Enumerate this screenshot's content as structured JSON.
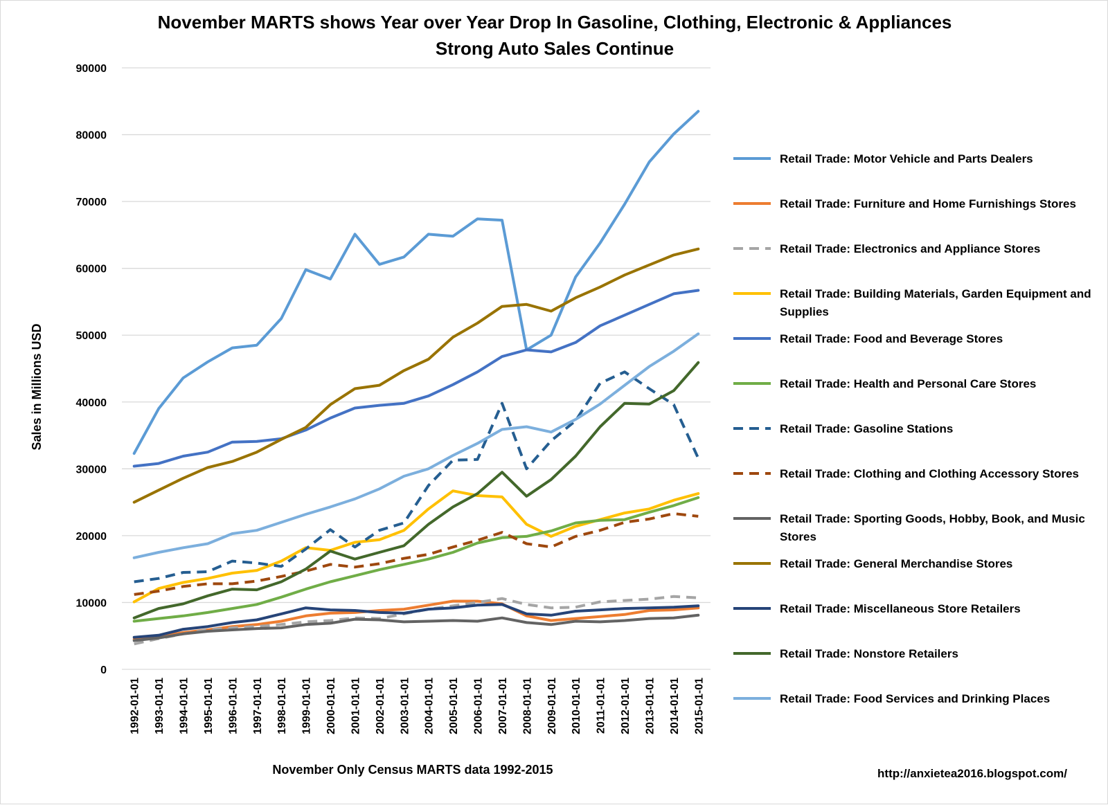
{
  "chart_data": {
    "type": "line",
    "title": [
      "November MARTS shows Year over Year Drop In Gasoline, Clothing, Electronic & Appliances",
      "Strong Auto Sales Continue"
    ],
    "xlabel": "November Only Census MARTS data 1992-2015",
    "ylabel": "Sales in Millions USD",
    "ylim": [
      0,
      90000
    ],
    "yticks": [
      0,
      10000,
      20000,
      30000,
      40000,
      50000,
      60000,
      70000,
      80000,
      90000
    ],
    "grid": "horizontal",
    "legend_position": "right",
    "source_text": "http://anxietea2016.blogspot.com/",
    "categories": [
      "1992-01-01",
      "1993-01-01",
      "1994-01-01",
      "1995-01-01",
      "1996-01-01",
      "1997-01-01",
      "1998-01-01",
      "1999-01-01",
      "2000-01-01",
      "2001-01-01",
      "2002-01-01",
      "2003-01-01",
      "2004-01-01",
      "2005-01-01",
      "2006-01-01",
      "2007-01-01",
      "2008-01-01",
      "2009-01-01",
      "2010-01-01",
      "2011-01-01",
      "2012-01-01",
      "2013-01-01",
      "2014-01-01",
      "2015-01-01"
    ],
    "series": [
      {
        "name": "Retail Trade: Motor Vehicle and Parts Dealers",
        "color": "#5b9bd5",
        "dashed": false,
        "values": [
          32300,
          39000,
          43600,
          46000,
          48100,
          48500,
          52500,
          59800,
          58400,
          65100,
          60600,
          61700,
          65100,
          64800,
          67400,
          67200,
          47800,
          50000,
          58700,
          63800,
          69600,
          75900,
          80100,
          83500
        ]
      },
      {
        "name": "Retail Trade: Furniture and Home Furnishings Stores",
        "color": "#ed7d31",
        "dashed": false,
        "values": [
          4500,
          4900,
          5500,
          5900,
          6400,
          6700,
          7200,
          8000,
          8400,
          8500,
          8800,
          9000,
          9600,
          10200,
          10200,
          9800,
          8000,
          7300,
          7600,
          7900,
          8200,
          8800,
          8900,
          9200
        ]
      },
      {
        "name": "Retail Trade: Electronics and Appliance Stores",
        "color": "#a5a5a5",
        "dashed": true,
        "values": [
          3800,
          4600,
          5300,
          5900,
          6200,
          6400,
          6700,
          7100,
          7300,
          7700,
          7600,
          8300,
          9000,
          9500,
          10000,
          10600,
          9700,
          9200,
          9300,
          10100,
          10300,
          10500,
          10900,
          10700
        ]
      },
      {
        "name": "Retail Trade: Building Materials, Garden Equipment and Supplies",
        "color": "#ffc000",
        "dashed": false,
        "values": [
          10100,
          12100,
          13000,
          13600,
          14400,
          14800,
          16200,
          18200,
          17800,
          19000,
          19400,
          20800,
          24000,
          26700,
          26000,
          25800,
          21700,
          19900,
          21400,
          22400,
          23400,
          24000,
          25300,
          26300
        ]
      },
      {
        "name": "Retail Trade: Food and Beverage Stores",
        "color": "#4472c4",
        "dashed": false,
        "values": [
          30400,
          30800,
          31900,
          32500,
          34000,
          34100,
          34500,
          35800,
          37600,
          39100,
          39500,
          39800,
          40900,
          42600,
          44500,
          46800,
          47800,
          47500,
          48900,
          51400,
          53000,
          54600,
          56200,
          56700
        ]
      },
      {
        "name": "Retail Trade: Health and Personal Care Stores",
        "color": "#70ad47",
        "dashed": false,
        "values": [
          7200,
          7600,
          8000,
          8500,
          9100,
          9700,
          10800,
          12000,
          13100,
          14000,
          14900,
          15700,
          16500,
          17500,
          18900,
          19700,
          19900,
          20700,
          21900,
          22300,
          22400,
          23500,
          24500,
          25700
        ]
      },
      {
        "name": "Retail Trade: Gasoline Stations",
        "color": "#255e91",
        "dashed": true,
        "values": [
          13100,
          13600,
          14500,
          14600,
          16200,
          15900,
          15400,
          18000,
          20900,
          18300,
          20800,
          21900,
          27500,
          31300,
          31400,
          39800,
          30000,
          34200,
          37200,
          42800,
          44500,
          42000,
          39600,
          31600
        ]
      },
      {
        "name": "Retail Trade: Clothing and Clothing Accessory Stores",
        "color": "#9e480e",
        "dashed": true,
        "values": [
          11200,
          11700,
          12400,
          12800,
          12800,
          13200,
          13900,
          14700,
          15700,
          15300,
          15800,
          16600,
          17200,
          18300,
          19300,
          20500,
          18800,
          18300,
          19900,
          20800,
          22000,
          22500,
          23300,
          22900
        ]
      },
      {
        "name": "Retail Trade: Sporting Goods, Hobby, Book, and Music Stores",
        "color": "#636363",
        "dashed": false,
        "values": [
          4300,
          4700,
          5300,
          5700,
          5900,
          6100,
          6200,
          6700,
          6900,
          7500,
          7400,
          7100,
          7200,
          7300,
          7200,
          7700,
          7000,
          6700,
          7200,
          7100,
          7300,
          7600,
          7700,
          8100
        ]
      },
      {
        "name": "Retail Trade: General Merchandise Stores",
        "color": "#997300",
        "dashed": false,
        "values": [
          25000,
          26800,
          28600,
          30200,
          31100,
          32500,
          34400,
          36200,
          39600,
          42000,
          42500,
          44700,
          46400,
          49700,
          51800,
          54300,
          54600,
          53600,
          55600,
          57200,
          59000,
          60500,
          62000,
          62900
        ]
      },
      {
        "name": "Retail Trade: Miscellaneous Store Retailers",
        "color": "#264478",
        "dashed": false,
        "values": [
          4800,
          5100,
          6000,
          6400,
          7000,
          7400,
          8300,
          9200,
          8900,
          8800,
          8500,
          8400,
          9000,
          9200,
          9600,
          9700,
          8300,
          8100,
          8700,
          8900,
          9100,
          9200,
          9300,
          9500
        ]
      },
      {
        "name": "Retail Trade: Nonstore Retailers",
        "color": "#43682b",
        "dashed": false,
        "values": [
          7700,
          9100,
          9800,
          11000,
          12000,
          11900,
          13100,
          15000,
          17700,
          16500,
          17500,
          18500,
          21700,
          24300,
          26300,
          29500,
          25900,
          28400,
          31900,
          36300,
          39800,
          39700,
          41700,
          45900
        ]
      },
      {
        "name": "Retail Trade: Food Services and Drinking Places",
        "color": "#7cafdd",
        "dashed": false,
        "values": [
          16700,
          17500,
          18200,
          18800,
          20300,
          20800,
          22000,
          23200,
          24300,
          25500,
          27000,
          28900,
          30000,
          32000,
          33800,
          35900,
          36300,
          35500,
          37400,
          39700,
          42500,
          45300,
          47600,
          50200
        ]
      }
    ]
  }
}
